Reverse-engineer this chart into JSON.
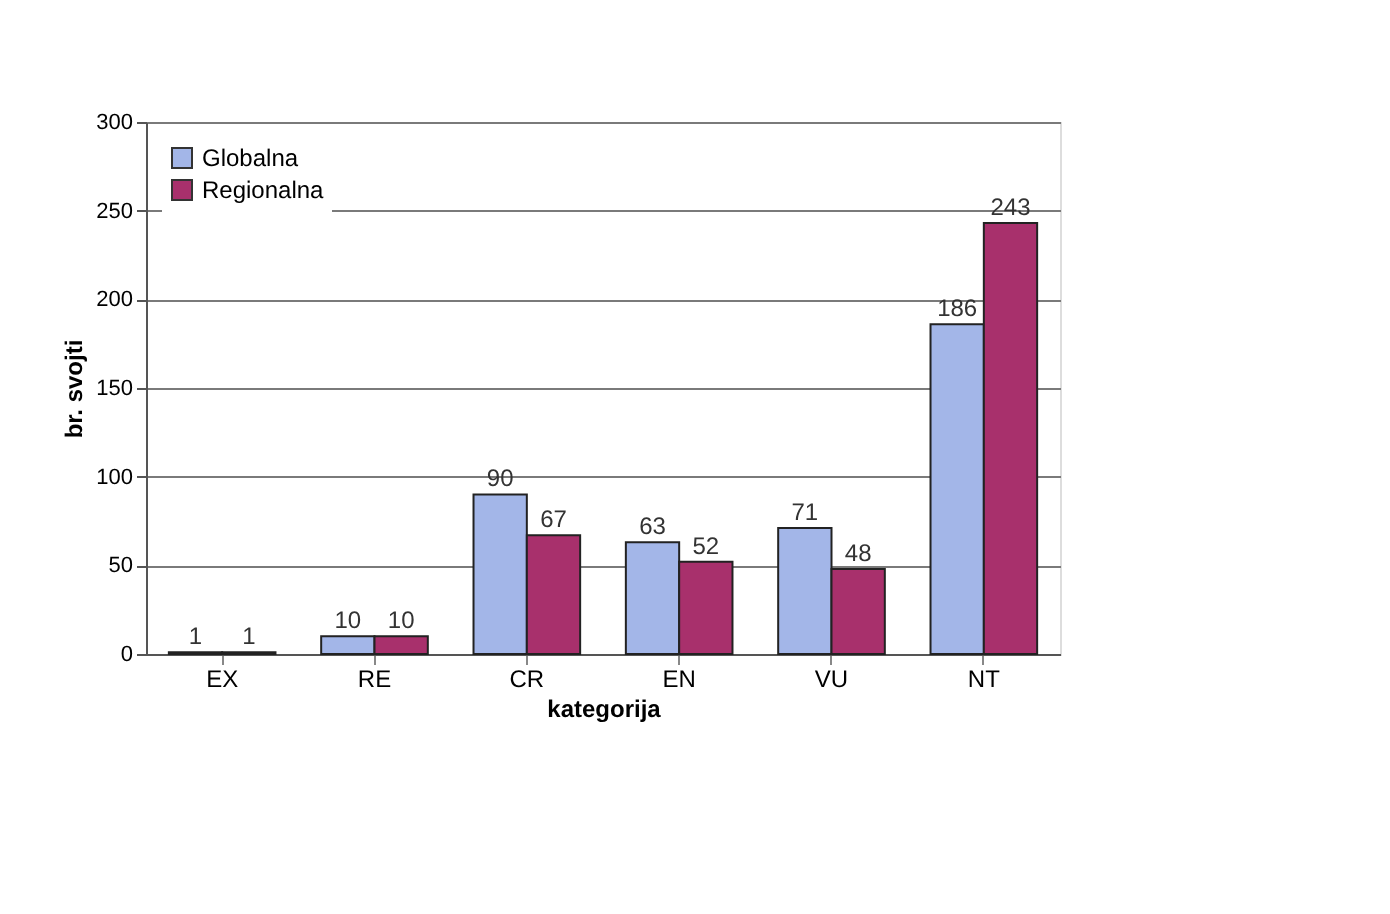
{
  "chart_data": {
    "type": "bar",
    "xlabel": "kategorija",
    "ylabel": "br. svojti",
    "categories": [
      "EX",
      "RE",
      "CR",
      "EN",
      "VU",
      "NT"
    ],
    "series": [
      {
        "name": "Globalna",
        "color": "#a3b6e8",
        "values": [
          1,
          10,
          90,
          63,
          71,
          186
        ]
      },
      {
        "name": "Regionalna",
        "color": "#a8306c",
        "values": [
          1,
          10,
          67,
          52,
          48,
          243
        ]
      }
    ],
    "ylim": [
      0,
      300
    ],
    "yticks": [
      0,
      50,
      100,
      150,
      200,
      250,
      300
    ],
    "grid": "y",
    "legend": "top left",
    "data_labels": true
  }
}
